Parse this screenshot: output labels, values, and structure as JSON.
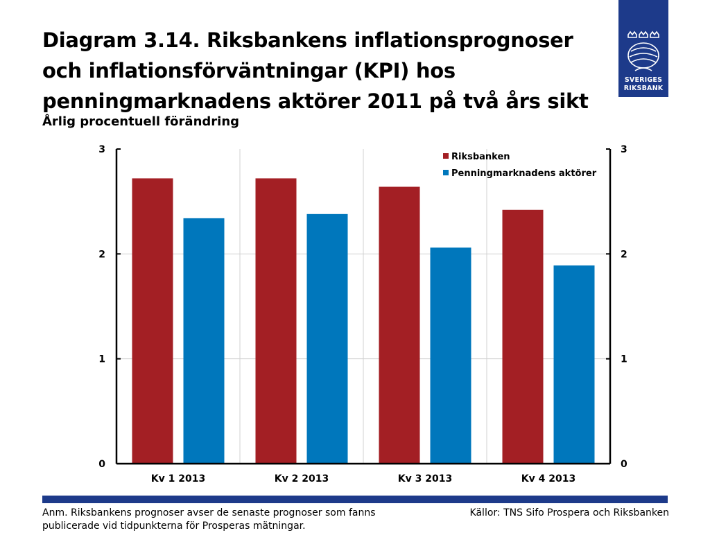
{
  "header": {
    "title": "Diagram 3.14. Riksbankens inflationsprognoser och inflationsförväntningar (KPI) hos penningmarknadens aktörer 2011 på två års sikt",
    "subtitle": "Årlig procentuell förändring"
  },
  "logo": {
    "line1": "SVERIGES",
    "line2": "RIKSBANK",
    "icon": "riksbank-crest-icon"
  },
  "chart_data": {
    "type": "bar",
    "categories": [
      "Kv 1 2013",
      "Kv 2 2013",
      "Kv 3 2013",
      "Kv 4 2013"
    ],
    "series": [
      {
        "name": "Riksbanken",
        "color": "#a31f24",
        "values": [
          2.72,
          2.72,
          2.64,
          2.42
        ]
      },
      {
        "name": "Penningmarknadens aktörer",
        "color": "#0077bc",
        "values": [
          2.34,
          2.38,
          2.06,
          1.89
        ]
      }
    ],
    "ylim": [
      0,
      3
    ],
    "yticks": [
      "0",
      "1",
      "2",
      "3"
    ],
    "y2ticks": [
      "0",
      "1",
      "2",
      "3"
    ],
    "grid": true,
    "legend_position": "top-right",
    "xlabel": "",
    "ylabel": ""
  },
  "footer": {
    "note": "Anm. Riksbankens prognoser avser de senaste prognoser som fanns publicerade vid tidpunkterna för Prosperas mätningar.",
    "source": "Källor: TNS Sifo Prospera och Riksbanken"
  }
}
